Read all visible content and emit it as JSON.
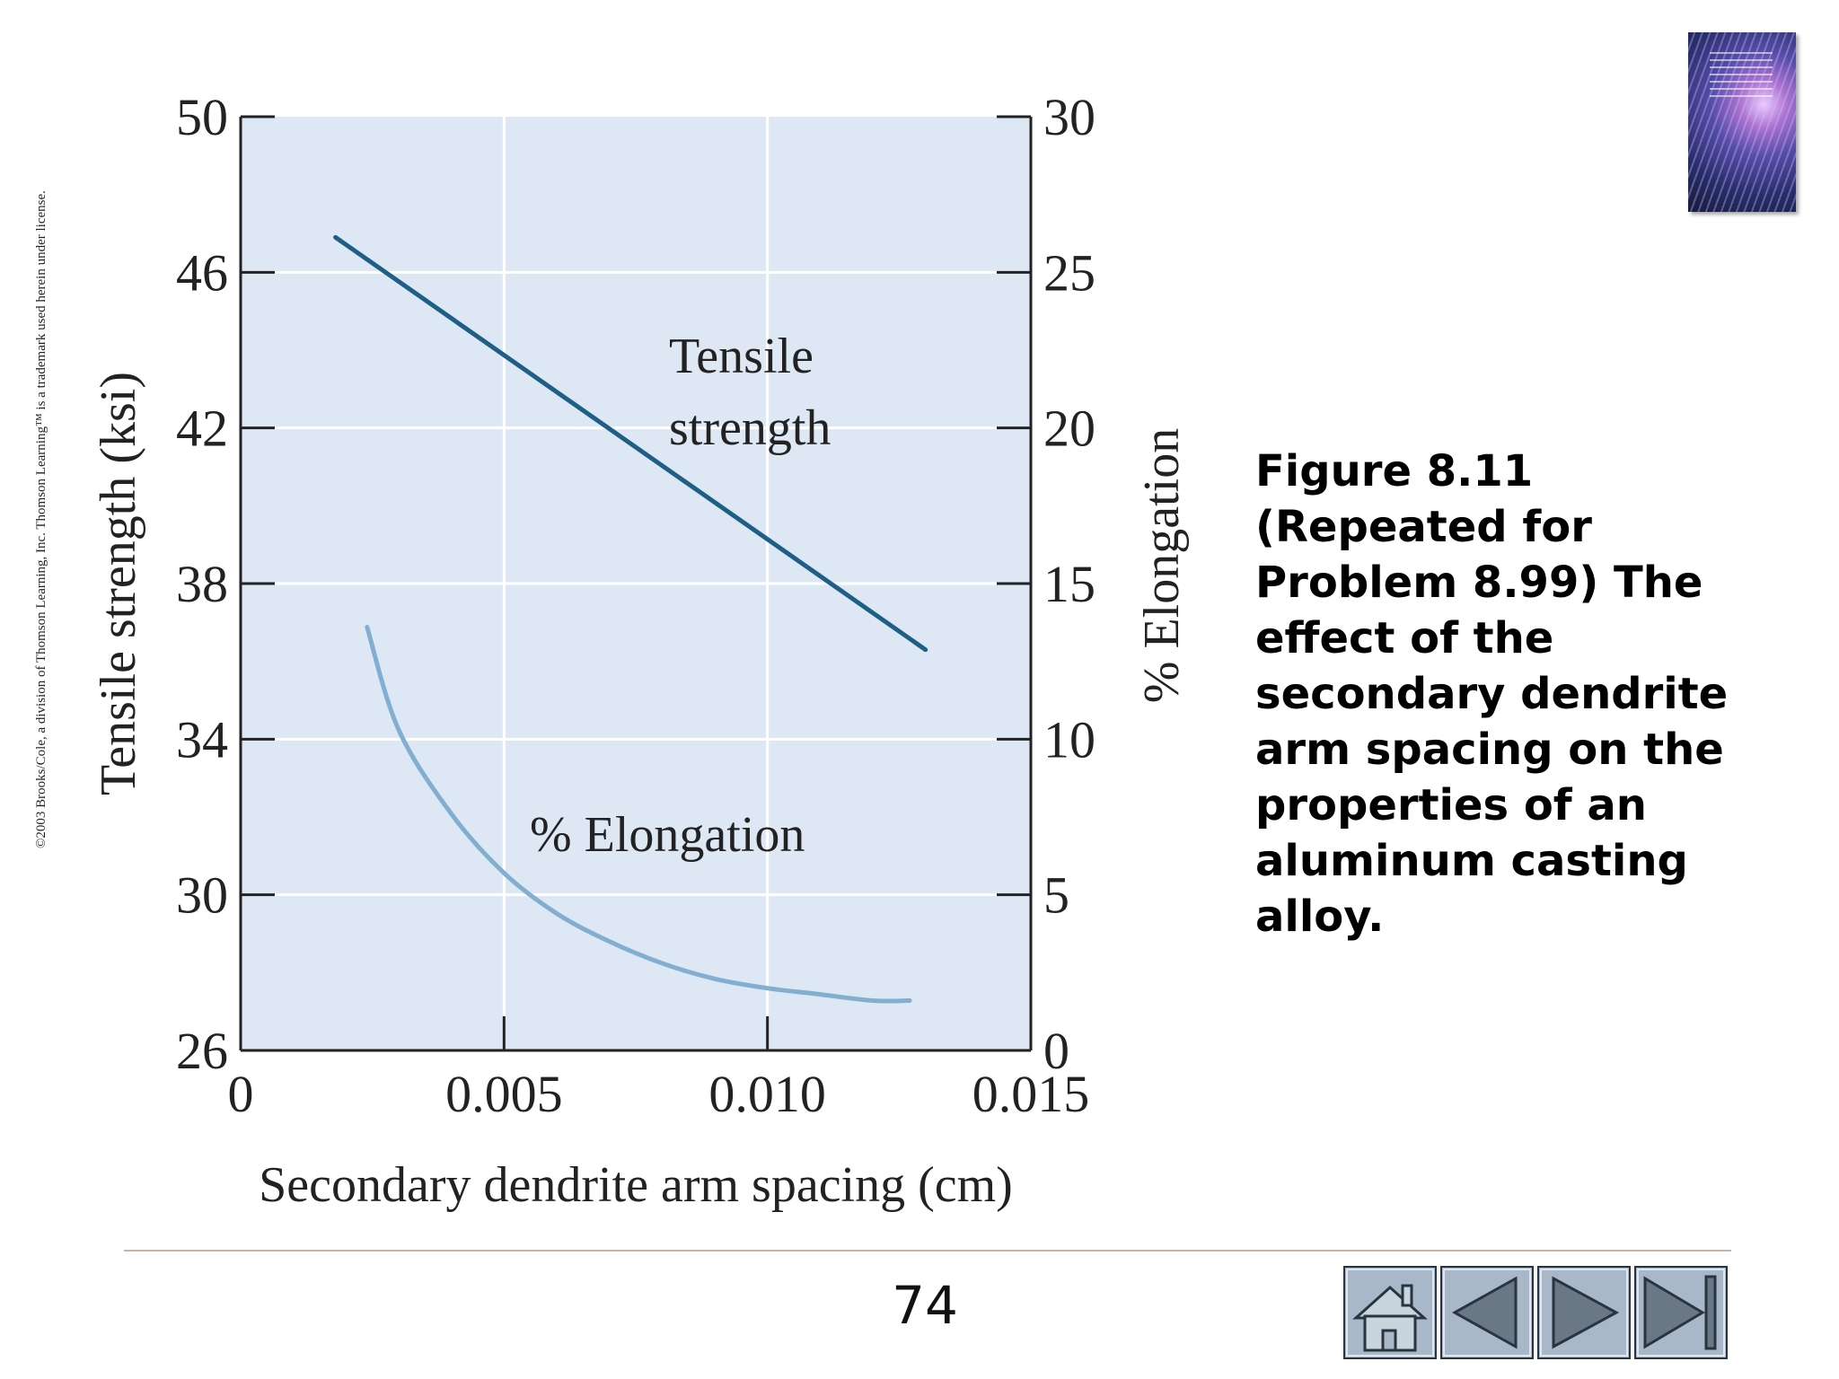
{
  "slide": {
    "copyright": "©2003 Brooks/Cole, a division of Thomson Learning, Inc.  Thomson Learning™ is a trademark used herein under license.",
    "caption": "Figure 8.11\n(Repeated for\nProblem 8.99)  The\neffect of the\nsecondary dendrite\narm spacing on the\nproperties of an\naluminum casting\nalloy.",
    "page_number": "74",
    "nav": {
      "home_icon": "home-icon",
      "prev_icon": "triangle-left-icon",
      "next_icon": "triangle-right-icon",
      "end_icon": "skip-end-icon"
    }
  },
  "chart_data": {
    "type": "line",
    "title": "",
    "xlabel": "Secondary dendrite arm spacing (cm)",
    "ylabel": "Tensile strength (ksi)",
    "y2label": "% Elongation",
    "xlim": [
      0,
      0.015
    ],
    "ylim": [
      26,
      50
    ],
    "y2lim": [
      0,
      30
    ],
    "x_ticks": [
      0,
      0.005,
      0.01,
      0.015
    ],
    "x_tick_labels": [
      "0",
      "0.005",
      "0.010",
      "0.015"
    ],
    "y_ticks": [
      26,
      30,
      34,
      38,
      42,
      46,
      50
    ],
    "y_tick_labels": [
      "26",
      "30",
      "34",
      "38",
      "42",
      "46",
      "50"
    ],
    "y2_ticks": [
      0,
      5,
      10,
      15,
      20,
      25,
      30
    ],
    "y2_tick_labels": [
      "0",
      "5",
      "10",
      "15",
      "20",
      "25",
      "30"
    ],
    "grid": true,
    "background": "#dde8f4",
    "series": [
      {
        "name": "Tensile strength",
        "label_lines": [
          "Tensile",
          "strength"
        ],
        "axis": "left",
        "color": "#1f5f86",
        "x": [
          0.0018,
          0.013
        ],
        "y": [
          46.9,
          36.3
        ]
      },
      {
        "name": "% Elongation",
        "label_lines": [
          "% Elongation"
        ],
        "axis": "right",
        "color": "#82aed0",
        "x": [
          0.0024,
          0.003,
          0.004,
          0.005,
          0.006,
          0.007,
          0.008,
          0.009,
          0.01,
          0.011,
          0.012,
          0.0127
        ],
        "y": [
          13.6,
          10.3,
          7.6,
          5.7,
          4.4,
          3.5,
          2.8,
          2.3,
          2.0,
          1.8,
          1.6,
          1.6
        ]
      }
    ]
  }
}
